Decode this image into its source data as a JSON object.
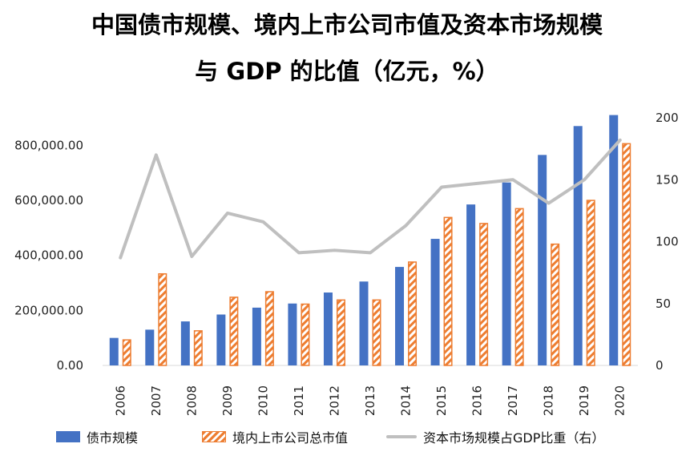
{
  "title_line1": "中国债市规模、境内上市公司市值及资本市场规模",
  "title_line2": "与 GDP 的比值（亿元，%）",
  "colors": {
    "bond": "#4472C4",
    "market_cap": "#ED7D31",
    "ratio": "#BFBFBF"
  },
  "legend": {
    "bond": "债市规模",
    "market_cap": "境内上市公司总市值",
    "ratio": "资本市场规模占GDP比重（右）"
  },
  "chart_data": {
    "type": "bar",
    "categories": [
      "2006",
      "2007",
      "2008",
      "2009",
      "2010",
      "2011",
      "2012",
      "2013",
      "2014",
      "2015",
      "2016",
      "2017",
      "2018",
      "2019",
      "2020"
    ],
    "series": [
      {
        "name": "债市规模",
        "type": "bar",
        "axis": "left",
        "values": [
          100000,
          130000,
          160000,
          185000,
          210000,
          225000,
          265000,
          305000,
          358000,
          460000,
          585000,
          665000,
          765000,
          870000,
          910000
        ]
      },
      {
        "name": "境内上市公司总市值",
        "type": "bar",
        "axis": "left",
        "pattern": "hatch",
        "values": [
          95000,
          335000,
          128000,
          250000,
          270000,
          225000,
          240000,
          240000,
          378000,
          540000,
          518000,
          572000,
          443000,
          602000,
          808000
        ]
      },
      {
        "name": "资本市场规模占GDP比重（右）",
        "type": "line",
        "axis": "right",
        "values": [
          87,
          170,
          88,
          123,
          116,
          91,
          93,
          91,
          113,
          144,
          147,
          150,
          131,
          150,
          182
        ]
      }
    ],
    "y_left": {
      "ylim": [
        0,
        900000
      ],
      "ticks": [
        0,
        200000,
        400000,
        600000,
        800000
      ],
      "tick_labels": [
        "0.00",
        "200,000.00",
        "400,000.00",
        "600,000.00",
        "800,000.00"
      ]
    },
    "y_right": {
      "ylim": [
        0,
        200
      ],
      "ticks": [
        0,
        50,
        100,
        150,
        200
      ],
      "tick_labels": [
        "0",
        "50",
        "100",
        "150",
        "200"
      ]
    },
    "grid": false,
    "legend_position": "bottom"
  }
}
